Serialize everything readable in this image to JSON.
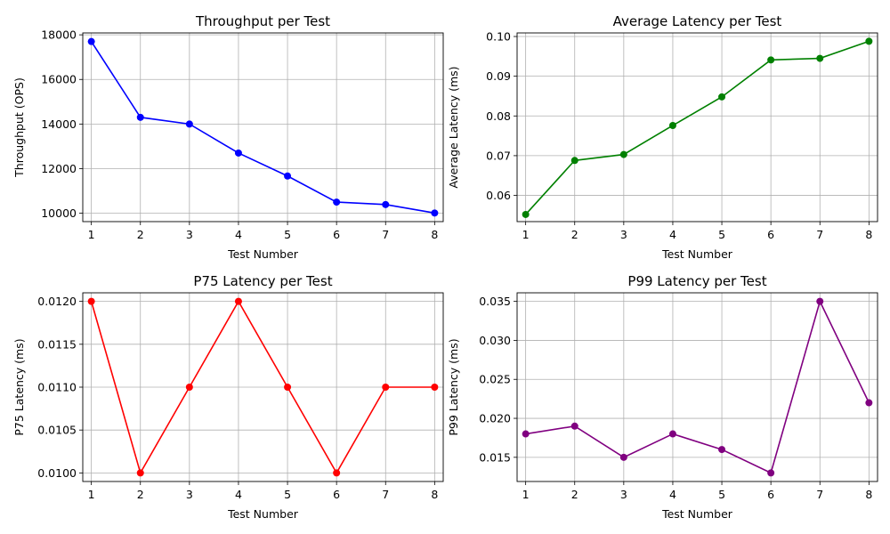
{
  "chart_data": [
    {
      "type": "line",
      "title": "Throughput per Test",
      "xlabel": "Test Number",
      "ylabel": "Throughput (OPS)",
      "x": [
        1,
        2,
        3,
        4,
        5,
        6,
        7,
        8
      ],
      "series": [
        {
          "values": [
            17700,
            14300,
            14000,
            12700,
            11670,
            10500,
            10390,
            10010
          ],
          "color": "#0000ff"
        }
      ],
      "xlim": [
        0.825,
        8.175
      ],
      "ylim": [
        9625,
        18085
      ],
      "yticks": [
        10000,
        12000,
        14000,
        16000,
        18000
      ],
      "ytick_labels": [
        "10000",
        "12000",
        "14000",
        "16000",
        "18000"
      ],
      "grid": true,
      "marker": "circle"
    },
    {
      "type": "line",
      "title": "Average Latency per Test",
      "xlabel": "Test Number",
      "ylabel": "Average Latency (ms)",
      "x": [
        1,
        2,
        3,
        4,
        5,
        6,
        7,
        8
      ],
      "series": [
        {
          "values": [
            0.0552,
            0.0688,
            0.0703,
            0.0776,
            0.0848,
            0.0941,
            0.0945,
            0.0988
          ],
          "color": "#008000"
        }
      ],
      "xlim": [
        0.825,
        8.175
      ],
      "ylim": [
        0.0534,
        0.1009
      ],
      "yticks": [
        0.06,
        0.07,
        0.08,
        0.09,
        0.1
      ],
      "ytick_labels": [
        "0.06",
        "0.07",
        "0.08",
        "0.09",
        "0.10"
      ],
      "grid": true,
      "marker": "circle"
    },
    {
      "type": "line",
      "title": "P75 Latency per Test",
      "xlabel": "Test Number",
      "ylabel": "P75 Latency (ms)",
      "x": [
        1,
        2,
        3,
        4,
        5,
        6,
        7,
        8
      ],
      "series": [
        {
          "values": [
            0.012,
            0.01,
            0.011,
            0.012,
            0.011,
            0.01,
            0.011,
            0.011
          ],
          "color": "#ff0000"
        }
      ],
      "xlim": [
        0.825,
        8.175
      ],
      "ylim": [
        0.0099,
        0.0121
      ],
      "yticks": [
        0.01,
        0.0105,
        0.011,
        0.0115,
        0.012
      ],
      "ytick_labels": [
        "0.0100",
        "0.0105",
        "0.0110",
        "0.0115",
        "0.0120"
      ],
      "grid": true,
      "marker": "circle"
    },
    {
      "type": "line",
      "title": "P99 Latency per Test",
      "xlabel": "Test Number",
      "ylabel": "P99 Latency (ms)",
      "x": [
        1,
        2,
        3,
        4,
        5,
        6,
        7,
        8
      ],
      "series": [
        {
          "values": [
            0.018,
            0.019,
            0.015,
            0.018,
            0.016,
            0.013,
            0.035,
            0.022
          ],
          "color": "#800080"
        }
      ],
      "xlim": [
        0.825,
        8.175
      ],
      "ylim": [
        0.0119,
        0.0361
      ],
      "yticks": [
        0.015,
        0.02,
        0.025,
        0.03,
        0.035
      ],
      "ytick_labels": [
        "0.015",
        "0.020",
        "0.025",
        "0.030",
        "0.035"
      ],
      "grid": true,
      "marker": "circle"
    }
  ]
}
